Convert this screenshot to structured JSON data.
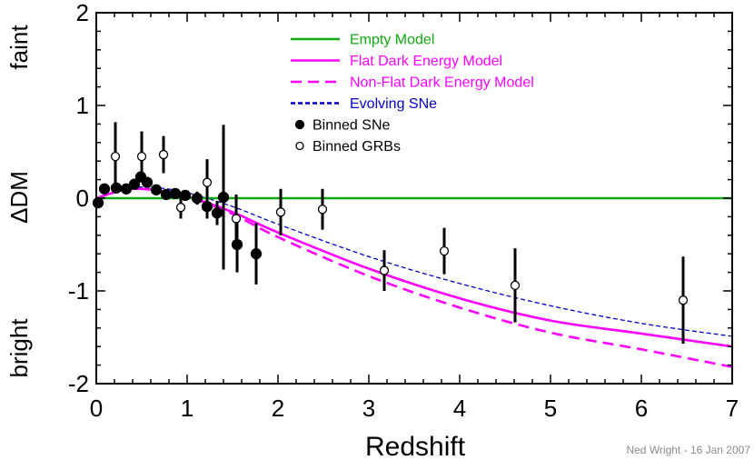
{
  "chart_data": {
    "type": "scatter",
    "xlabel": "Redshift",
    "ylabel": "ΔDM",
    "ylabel_top": "faint",
    "ylabel_bottom": "bright",
    "credit": "Ned Wright - 16 Jan 2007",
    "xlim": [
      0,
      7
    ],
    "ylim": [
      -2,
      2
    ],
    "x_ticks": [
      "0",
      "1",
      "2",
      "3",
      "4",
      "5",
      "6",
      "7"
    ],
    "y_ticks": [
      "-2",
      "-1",
      "0",
      "1",
      "2"
    ],
    "legend_position": "top-center",
    "grid": false,
    "series": [
      {
        "name": "Empty Model",
        "kind": "line",
        "style": "solid",
        "color": "#12a812",
        "x": [
          0,
          7
        ],
        "y": [
          0,
          0
        ]
      },
      {
        "name": "Flat Dark Energy Model",
        "kind": "line",
        "style": "solid",
        "color": "#ff00ff",
        "x": [
          0,
          0.3,
          0.5,
          0.7,
          1.0,
          1.5,
          2.0,
          3.0,
          4.0,
          5.0,
          6.0,
          7.0
        ],
        "y": [
          0,
          0.09,
          0.1,
          0.08,
          0.02,
          -0.15,
          -0.37,
          -0.76,
          -1.08,
          -1.32,
          -1.46,
          -1.6
        ]
      },
      {
        "name": "Non-Flat Dark Energy Model",
        "kind": "line",
        "style": "dashed",
        "color": "#ff00ff",
        "x": [
          0,
          0.3,
          0.5,
          0.7,
          1.0,
          1.5,
          2.0,
          3.0,
          4.0,
          5.0,
          6.0,
          7.0
        ],
        "y": [
          0,
          0.09,
          0.1,
          0.08,
          0.02,
          -0.17,
          -0.42,
          -0.84,
          -1.18,
          -1.45,
          -1.63,
          -1.82
        ]
      },
      {
        "name": "Evolving SNe",
        "kind": "line",
        "style": "dotted",
        "color": "#0000cc",
        "x": [
          0,
          0.3,
          0.5,
          0.7,
          1.0,
          1.5,
          2.0,
          3.0,
          4.0,
          5.0,
          6.0,
          7.0
        ],
        "y": [
          0,
          0.1,
          0.12,
          0.11,
          0.06,
          -0.09,
          -0.28,
          -0.63,
          -0.92,
          -1.16,
          -1.35,
          -1.49
        ]
      },
      {
        "name": "Binned SNe",
        "kind": "points",
        "marker": "filled",
        "color": "#000000",
        "points": [
          {
            "x": 0.02,
            "y": -0.05,
            "err": 0.03
          },
          {
            "x": 0.09,
            "y": 0.1,
            "err": 0.04
          },
          {
            "x": 0.22,
            "y": 0.11,
            "err": 0.04
          },
          {
            "x": 0.33,
            "y": 0.1,
            "err": 0.04
          },
          {
            "x": 0.42,
            "y": 0.15,
            "err": 0.04
          },
          {
            "x": 0.49,
            "y": 0.23,
            "err": 0.04
          },
          {
            "x": 0.56,
            "y": 0.17,
            "err": 0.04
          },
          {
            "x": 0.66,
            "y": 0.09,
            "err": 0.04
          },
          {
            "x": 0.77,
            "y": 0.04,
            "err": 0.04
          },
          {
            "x": 0.87,
            "y": 0.05,
            "err": 0.04
          },
          {
            "x": 0.98,
            "y": 0.03,
            "err": 0.05
          },
          {
            "x": 1.11,
            "y": 0.0,
            "err": 0.07
          },
          {
            "x": 1.22,
            "y": -0.09,
            "err": 0.13
          },
          {
            "x": 1.33,
            "y": -0.16,
            "err": 0.13
          },
          {
            "x": 1.4,
            "y": 0.01,
            "err": 0.78
          },
          {
            "x": 1.55,
            "y": -0.5,
            "err": 0.3
          },
          {
            "x": 1.76,
            "y": -0.6,
            "err": 0.33
          }
        ]
      },
      {
        "name": "Binned GRBs",
        "kind": "points",
        "marker": "open",
        "color": "#000000",
        "points": [
          {
            "x": 0.21,
            "y": 0.45,
            "err": 0.37
          },
          {
            "x": 0.5,
            "y": 0.45,
            "err": 0.27
          },
          {
            "x": 0.74,
            "y": 0.47,
            "err": 0.2
          },
          {
            "x": 0.93,
            "y": -0.1,
            "err": 0.12
          },
          {
            "x": 1.22,
            "y": 0.17,
            "err": 0.25
          },
          {
            "x": 1.54,
            "y": -0.22,
            "err": 0.26
          },
          {
            "x": 2.03,
            "y": -0.15,
            "err": 0.25
          },
          {
            "x": 2.49,
            "y": -0.12,
            "err": 0.22
          },
          {
            "x": 3.17,
            "y": -0.78,
            "err": 0.22
          },
          {
            "x": 3.83,
            "y": -0.57,
            "err": 0.25
          },
          {
            "x": 4.61,
            "y": -0.94,
            "err": 0.4
          },
          {
            "x": 6.46,
            "y": -1.1,
            "err": 0.47
          }
        ]
      }
    ]
  }
}
